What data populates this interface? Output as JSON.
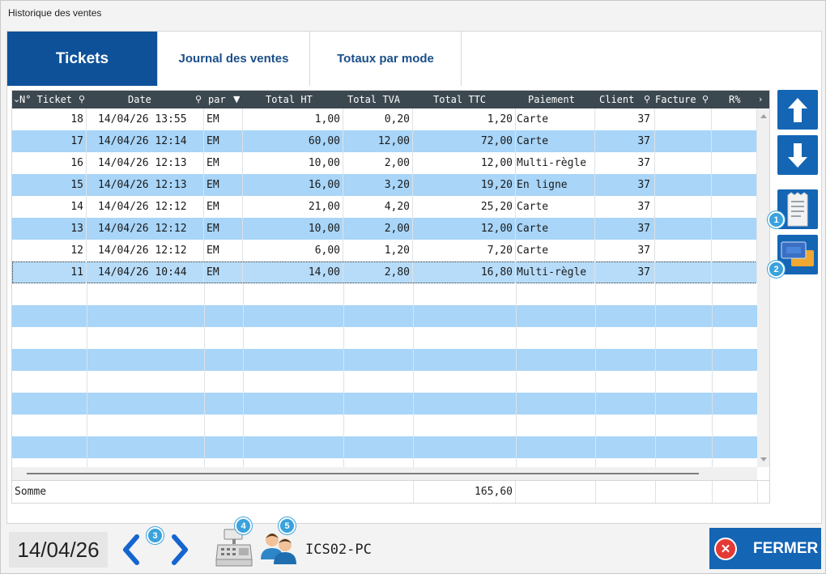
{
  "window": {
    "title": "Historique des ventes"
  },
  "tabs": [
    {
      "label": "Tickets",
      "active": true
    },
    {
      "label": "Journal des ventes",
      "active": false
    },
    {
      "label": "Totaux par mode",
      "active": false
    }
  ],
  "grid": {
    "headers": [
      "N° Ticket",
      "Date",
      "par",
      "Total HT",
      "Total TVA",
      "Total TTC",
      "Paiement",
      "Client",
      "Facture",
      "R%"
    ],
    "rows": [
      [
        "18",
        "14/04/26 13:55",
        "EM",
        "1,00",
        "0,20",
        "1,20",
        "Carte",
        "37",
        "",
        ""
      ],
      [
        "17",
        "14/04/26 12:14",
        "EM",
        "60,00",
        "12,00",
        "72,00",
        "Carte",
        "37",
        "",
        ""
      ],
      [
        "16",
        "14/04/26 12:13",
        "EM",
        "10,00",
        "2,00",
        "12,00",
        "Multi-règle",
        "37",
        "",
        ""
      ],
      [
        "15",
        "14/04/26 12:13",
        "EM",
        "16,00",
        "3,20",
        "19,20",
        "En ligne",
        "37",
        "",
        ""
      ],
      [
        "14",
        "14/04/26 12:12",
        "EM",
        "21,00",
        "4,20",
        "25,20",
        "Carte",
        "37",
        "",
        ""
      ],
      [
        "13",
        "14/04/26 12:12",
        "EM",
        "10,00",
        "2,00",
        "12,00",
        "Carte",
        "37",
        "",
        ""
      ],
      [
        "12",
        "14/04/26 12:12",
        "EM",
        "6,00",
        "1,20",
        "7,20",
        "Carte",
        "37",
        "",
        ""
      ],
      [
        "11",
        "14/04/26 10:44",
        "EM",
        "14,00",
        "2,80",
        "16,80",
        "Multi-règle",
        "37",
        "",
        ""
      ]
    ],
    "selected_ticket": "11",
    "footer": {
      "label": "Somme",
      "total_ttc": "165,60"
    }
  },
  "side_buttons": [
    {
      "name": "scroll-up-button",
      "icon": "arrow-up-icon"
    },
    {
      "name": "scroll-down-button",
      "icon": "arrow-down-icon"
    },
    {
      "name": "receipt-button",
      "icon": "receipt-icon",
      "badge": "1"
    },
    {
      "name": "payment-cards-button",
      "icon": "cards-icon",
      "badge": "2"
    }
  ],
  "bottom": {
    "date": "14/04/26",
    "prev_next_badge": "3",
    "register_badge": "4",
    "users_badge": "5",
    "pc_name": "ICS02-PC",
    "close_label": "FERMER"
  },
  "colors": {
    "primary": "#0e5199",
    "header_bg": "#3c4850",
    "alt_row": "#a8d5f8",
    "badge": "#3aa2dd",
    "close_icon": "#e53935"
  }
}
